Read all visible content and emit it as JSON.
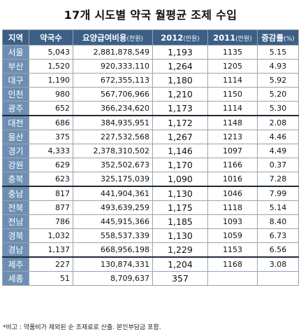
{
  "title": "17개 시도별 약국 월평균 조제 수입",
  "headers": [
    "지역",
    "약국수",
    "요양급여비용",
    "(천원)",
    "2012",
    "(만원)",
    "2011",
    "(만원)",
    "증감률",
    "(%)"
  ],
  "rows": [
    {
      "region": "서울",
      "pharmacies": "5,043",
      "cost": "2,881,878,549",
      "y2012": "1,193",
      "y2011": "1135",
      "rate": "5.15"
    },
    {
      "region": "부산",
      "pharmacies": "1,520",
      "cost": "920,333,110",
      "y2012": "1,264",
      "y2011": "1205",
      "rate": "4.93"
    },
    {
      "region": "대구",
      "pharmacies": "1,190",
      "cost": "672,355,113",
      "y2012": "1,180",
      "y2011": "1114",
      "rate": "5.92"
    },
    {
      "region": "인천",
      "pharmacies": "980",
      "cost": "567,706,966",
      "y2012": "1,210",
      "y2011": "1150",
      "rate": "5.20"
    },
    {
      "region": "광주",
      "pharmacies": "652",
      "cost": "366,234,620",
      "y2012": "1,173",
      "y2011": "1114",
      "rate": "5.30"
    },
    {
      "region": "대전",
      "pharmacies": "686",
      "cost": "384,935,951",
      "y2012": "1,172",
      "y2011": "1148",
      "rate": "2.08"
    },
    {
      "region": "울산",
      "pharmacies": "375",
      "cost": "227,532,568",
      "y2012": "1,267",
      "y2011": "1213",
      "rate": "4.46"
    },
    {
      "region": "경기",
      "pharmacies": "4,333",
      "cost": "2,378,310,502",
      "y2012": "1,146",
      "y2011": "1097",
      "rate": "4.49"
    },
    {
      "region": "강원",
      "pharmacies": "629",
      "cost": "352,502,673",
      "y2012": "1,170",
      "y2011": "1166",
      "rate": "0.37"
    },
    {
      "region": "충북",
      "pharmacies": "623",
      "cost": "325,175,039",
      "y2012": "1,090",
      "y2011": "1016",
      "rate": "7.28"
    },
    {
      "region": "충남",
      "pharmacies": "817",
      "cost": "441,904,361",
      "y2012": "1,130",
      "y2011": "1046",
      "rate": "7.99"
    },
    {
      "region": "전북",
      "pharmacies": "877",
      "cost": "493,639,259",
      "y2012": "1,175",
      "y2011": "1118",
      "rate": "5.14"
    },
    {
      "region": "전남",
      "pharmacies": "786",
      "cost": "445,915,366",
      "y2012": "1,185",
      "y2011": "1093",
      "rate": "8.40"
    },
    {
      "region": "경북",
      "pharmacies": "1,032",
      "cost": "558,537,339",
      "y2012": "1,130",
      "y2011": "1059",
      "rate": "6.73"
    },
    {
      "region": "경남",
      "pharmacies": "1,137",
      "cost": "668,956,198",
      "y2012": "1,229",
      "y2011": "1153",
      "rate": "6.56"
    },
    {
      "region": "제주",
      "pharmacies": "227",
      "cost": "130,874,331",
      "y2012": "1,204",
      "y2011": "1168",
      "rate": "3.08"
    },
    {
      "region": "세종",
      "pharmacies": "51",
      "cost": "8,709,637",
      "y2012": "357",
      "y2011": "",
      "rate": ""
    }
  ],
  "footnote": "*비고 : 약품비가 제외된 순 조제료로 산출. 본인부담금 포함."
}
